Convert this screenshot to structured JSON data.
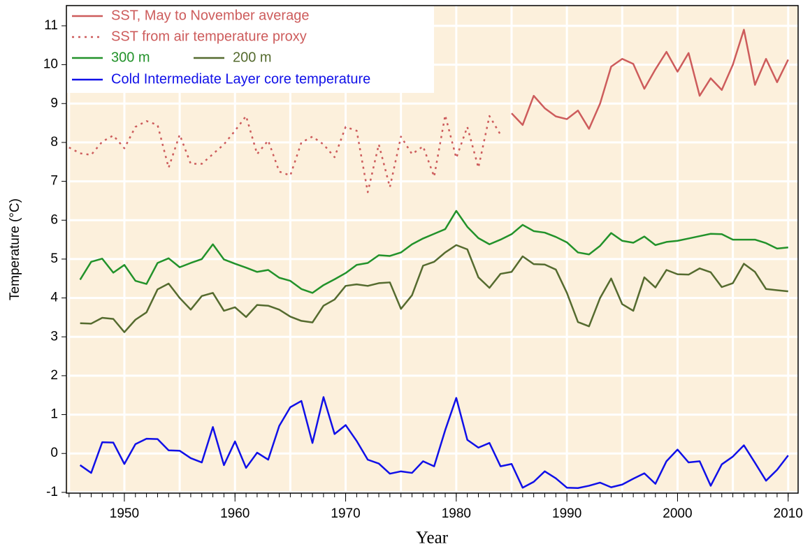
{
  "chart_data": {
    "type": "line",
    "xlabel": "Year",
    "ylabel": "Temperature (°C)",
    "xlim": [
      1944.76,
      2010.9
    ],
    "ylim": [
      -1.02,
      11.52
    ],
    "xticks": [
      1950,
      1960,
      1970,
      1980,
      1990,
      2000,
      2010
    ],
    "yticks": [
      -1,
      0,
      1,
      2,
      3,
      4,
      5,
      6,
      7,
      8,
      9,
      10,
      11
    ],
    "xminor_step": 1,
    "xgrid_step": 5,
    "grid": true,
    "background": "#fcf0dc",
    "legend": "upper left",
    "series": [
      {
        "name": "SST, May to November average",
        "color": "#cd5c5c",
        "linestyle": "solid",
        "x": [
          1985,
          1986,
          1987,
          1988,
          1989,
          1990,
          1991,
          1992,
          1993,
          1994,
          1995,
          1996,
          1997,
          1998,
          1999,
          2000,
          2001,
          2002,
          2003,
          2004,
          2005,
          2006,
          2007,
          2008,
          2009,
          2010
        ],
        "values": [
          8.75,
          8.45,
          9.2,
          8.88,
          8.67,
          8.6,
          8.82,
          8.35,
          9.0,
          9.95,
          10.15,
          10.02,
          9.38,
          9.88,
          10.33,
          9.82,
          10.3,
          9.2,
          9.65,
          9.35,
          10.0,
          10.9,
          9.48,
          10.15,
          9.55,
          10.13
        ]
      },
      {
        "name": "SST from air temperature proxy",
        "color": "#cd5c5c",
        "linestyle": "dotted",
        "x": [
          1945,
          1946,
          1947,
          1948,
          1949,
          1950,
          1951,
          1952,
          1953,
          1954,
          1955,
          1956,
          1957,
          1958,
          1959,
          1960,
          1961,
          1962,
          1963,
          1964,
          1965,
          1966,
          1967,
          1968,
          1969,
          1970,
          1971,
          1972,
          1973,
          1974,
          1975,
          1976,
          1977,
          1978,
          1979,
          1980,
          1981,
          1982,
          1983,
          1984
        ],
        "values": [
          7.87,
          7.72,
          7.68,
          8.02,
          8.18,
          7.85,
          8.4,
          8.55,
          8.45,
          7.35,
          8.2,
          7.45,
          7.45,
          7.7,
          7.95,
          8.3,
          8.68,
          7.7,
          8.05,
          7.25,
          7.15,
          8.0,
          8.15,
          7.95,
          7.62,
          8.4,
          8.3,
          6.72,
          7.95,
          6.85,
          8.15,
          7.7,
          7.9,
          7.12,
          8.7,
          7.6,
          8.4,
          7.35,
          8.68,
          8.2
        ]
      },
      {
        "name": "300 m",
        "color": "#22922a",
        "linestyle": "solid",
        "x": [
          1946,
          1947,
          1948,
          1949,
          1950,
          1951,
          1952,
          1953,
          1954,
          1955,
          1956,
          1957,
          1958,
          1959,
          1960,
          1961,
          1962,
          1963,
          1964,
          1965,
          1966,
          1967,
          1968,
          1969,
          1970,
          1971,
          1972,
          1973,
          1974,
          1975,
          1976,
          1977,
          1978,
          1979,
          1980,
          1981,
          1982,
          1983,
          1984,
          1985,
          1986,
          1987,
          1988,
          1989,
          1990,
          1991,
          1992,
          1993,
          1994,
          1995,
          1996,
          1997,
          1998,
          1999,
          2000,
          2001,
          2002,
          2003,
          2004,
          2005,
          2006,
          2007,
          2008,
          2009,
          2010
        ],
        "values": [
          4.47,
          4.93,
          5.01,
          4.65,
          4.85,
          4.44,
          4.36,
          4.9,
          5.02,
          4.79,
          4.9,
          5.0,
          5.38,
          4.99,
          4.88,
          4.78,
          4.67,
          4.72,
          4.52,
          4.44,
          4.23,
          4.13,
          4.33,
          4.48,
          4.64,
          4.85,
          4.9,
          5.1,
          5.08,
          5.17,
          5.38,
          5.53,
          5.65,
          5.77,
          6.24,
          5.83,
          5.54,
          5.38,
          5.5,
          5.64,
          5.88,
          5.72,
          5.68,
          5.57,
          5.43,
          5.17,
          5.12,
          5.34,
          5.67,
          5.47,
          5.42,
          5.58,
          5.36,
          5.44,
          5.47,
          5.53,
          5.59,
          5.65,
          5.64,
          5.5,
          5.5,
          5.5,
          5.41,
          5.27,
          5.3
        ]
      },
      {
        "name": "200 m",
        "color": "#556b2f",
        "linestyle": "solid",
        "x": [
          1946,
          1947,
          1948,
          1949,
          1950,
          1951,
          1952,
          1953,
          1954,
          1955,
          1956,
          1957,
          1958,
          1959,
          1960,
          1961,
          1962,
          1963,
          1964,
          1965,
          1966,
          1967,
          1968,
          1969,
          1970,
          1971,
          1972,
          1973,
          1974,
          1975,
          1976,
          1977,
          1978,
          1979,
          1980,
          1981,
          1982,
          1983,
          1984,
          1985,
          1986,
          1987,
          1988,
          1989,
          1990,
          1991,
          1992,
          1993,
          1994,
          1995,
          1996,
          1997,
          1998,
          1999,
          2000,
          2001,
          2002,
          2003,
          2004,
          2005,
          2006,
          2007,
          2008,
          2009,
          2010
        ],
        "values": [
          3.35,
          3.34,
          3.49,
          3.46,
          3.12,
          3.44,
          3.63,
          4.22,
          4.37,
          4.0,
          3.7,
          4.05,
          4.13,
          3.67,
          3.76,
          3.51,
          3.82,
          3.8,
          3.7,
          3.52,
          3.41,
          3.37,
          3.8,
          3.96,
          4.31,
          4.35,
          4.31,
          4.38,
          4.4,
          3.72,
          4.07,
          4.83,
          4.93,
          5.17,
          5.36,
          5.25,
          4.53,
          4.26,
          4.62,
          4.67,
          5.07,
          4.87,
          4.86,
          4.73,
          4.13,
          3.38,
          3.27,
          4.0,
          4.5,
          3.84,
          3.67,
          4.53,
          4.27,
          4.72,
          4.61,
          4.6,
          4.76,
          4.66,
          4.28,
          4.38,
          4.88,
          4.67,
          4.23,
          4.2,
          4.17
        ]
      },
      {
        "name": "Cold Intermediate Layer core temperature",
        "color": "#1010e8",
        "linestyle": "solid",
        "x": [
          1946,
          1947,
          1948,
          1949,
          1950,
          1951,
          1952,
          1953,
          1954,
          1955,
          1956,
          1957,
          1958,
          1959,
          1960,
          1961,
          1962,
          1963,
          1964,
          1965,
          1966,
          1967,
          1968,
          1969,
          1970,
          1971,
          1972,
          1973,
          1974,
          1975,
          1976,
          1977,
          1978,
          1979,
          1980,
          1981,
          1982,
          1983,
          1984,
          1985,
          1986,
          1987,
          1988,
          1989,
          1990,
          1991,
          1992,
          1993,
          1994,
          1995,
          1996,
          1997,
          1998,
          1999,
          2000,
          2001,
          2002,
          2003,
          2004,
          2005,
          2006,
          2007,
          2008,
          2009,
          2010
        ],
        "values": [
          -0.3,
          -0.5,
          0.29,
          0.28,
          -0.27,
          0.24,
          0.38,
          0.37,
          0.08,
          0.07,
          -0.12,
          -0.23,
          0.68,
          -0.3,
          0.31,
          -0.37,
          0.02,
          -0.16,
          0.71,
          1.19,
          1.35,
          0.27,
          1.45,
          0.5,
          0.73,
          0.32,
          -0.16,
          -0.26,
          -0.52,
          -0.46,
          -0.5,
          -0.2,
          -0.33,
          0.6,
          1.43,
          0.35,
          0.15,
          0.27,
          -0.33,
          -0.27,
          -0.88,
          -0.73,
          -0.46,
          -0.64,
          -0.88,
          -0.89,
          -0.83,
          -0.75,
          -0.87,
          -0.8,
          -0.65,
          -0.51,
          -0.78,
          -0.2,
          0.1,
          -0.23,
          -0.2,
          -0.83,
          -0.28,
          -0.08,
          0.21,
          -0.24,
          -0.7,
          -0.42,
          -0.05
        ]
      }
    ]
  }
}
